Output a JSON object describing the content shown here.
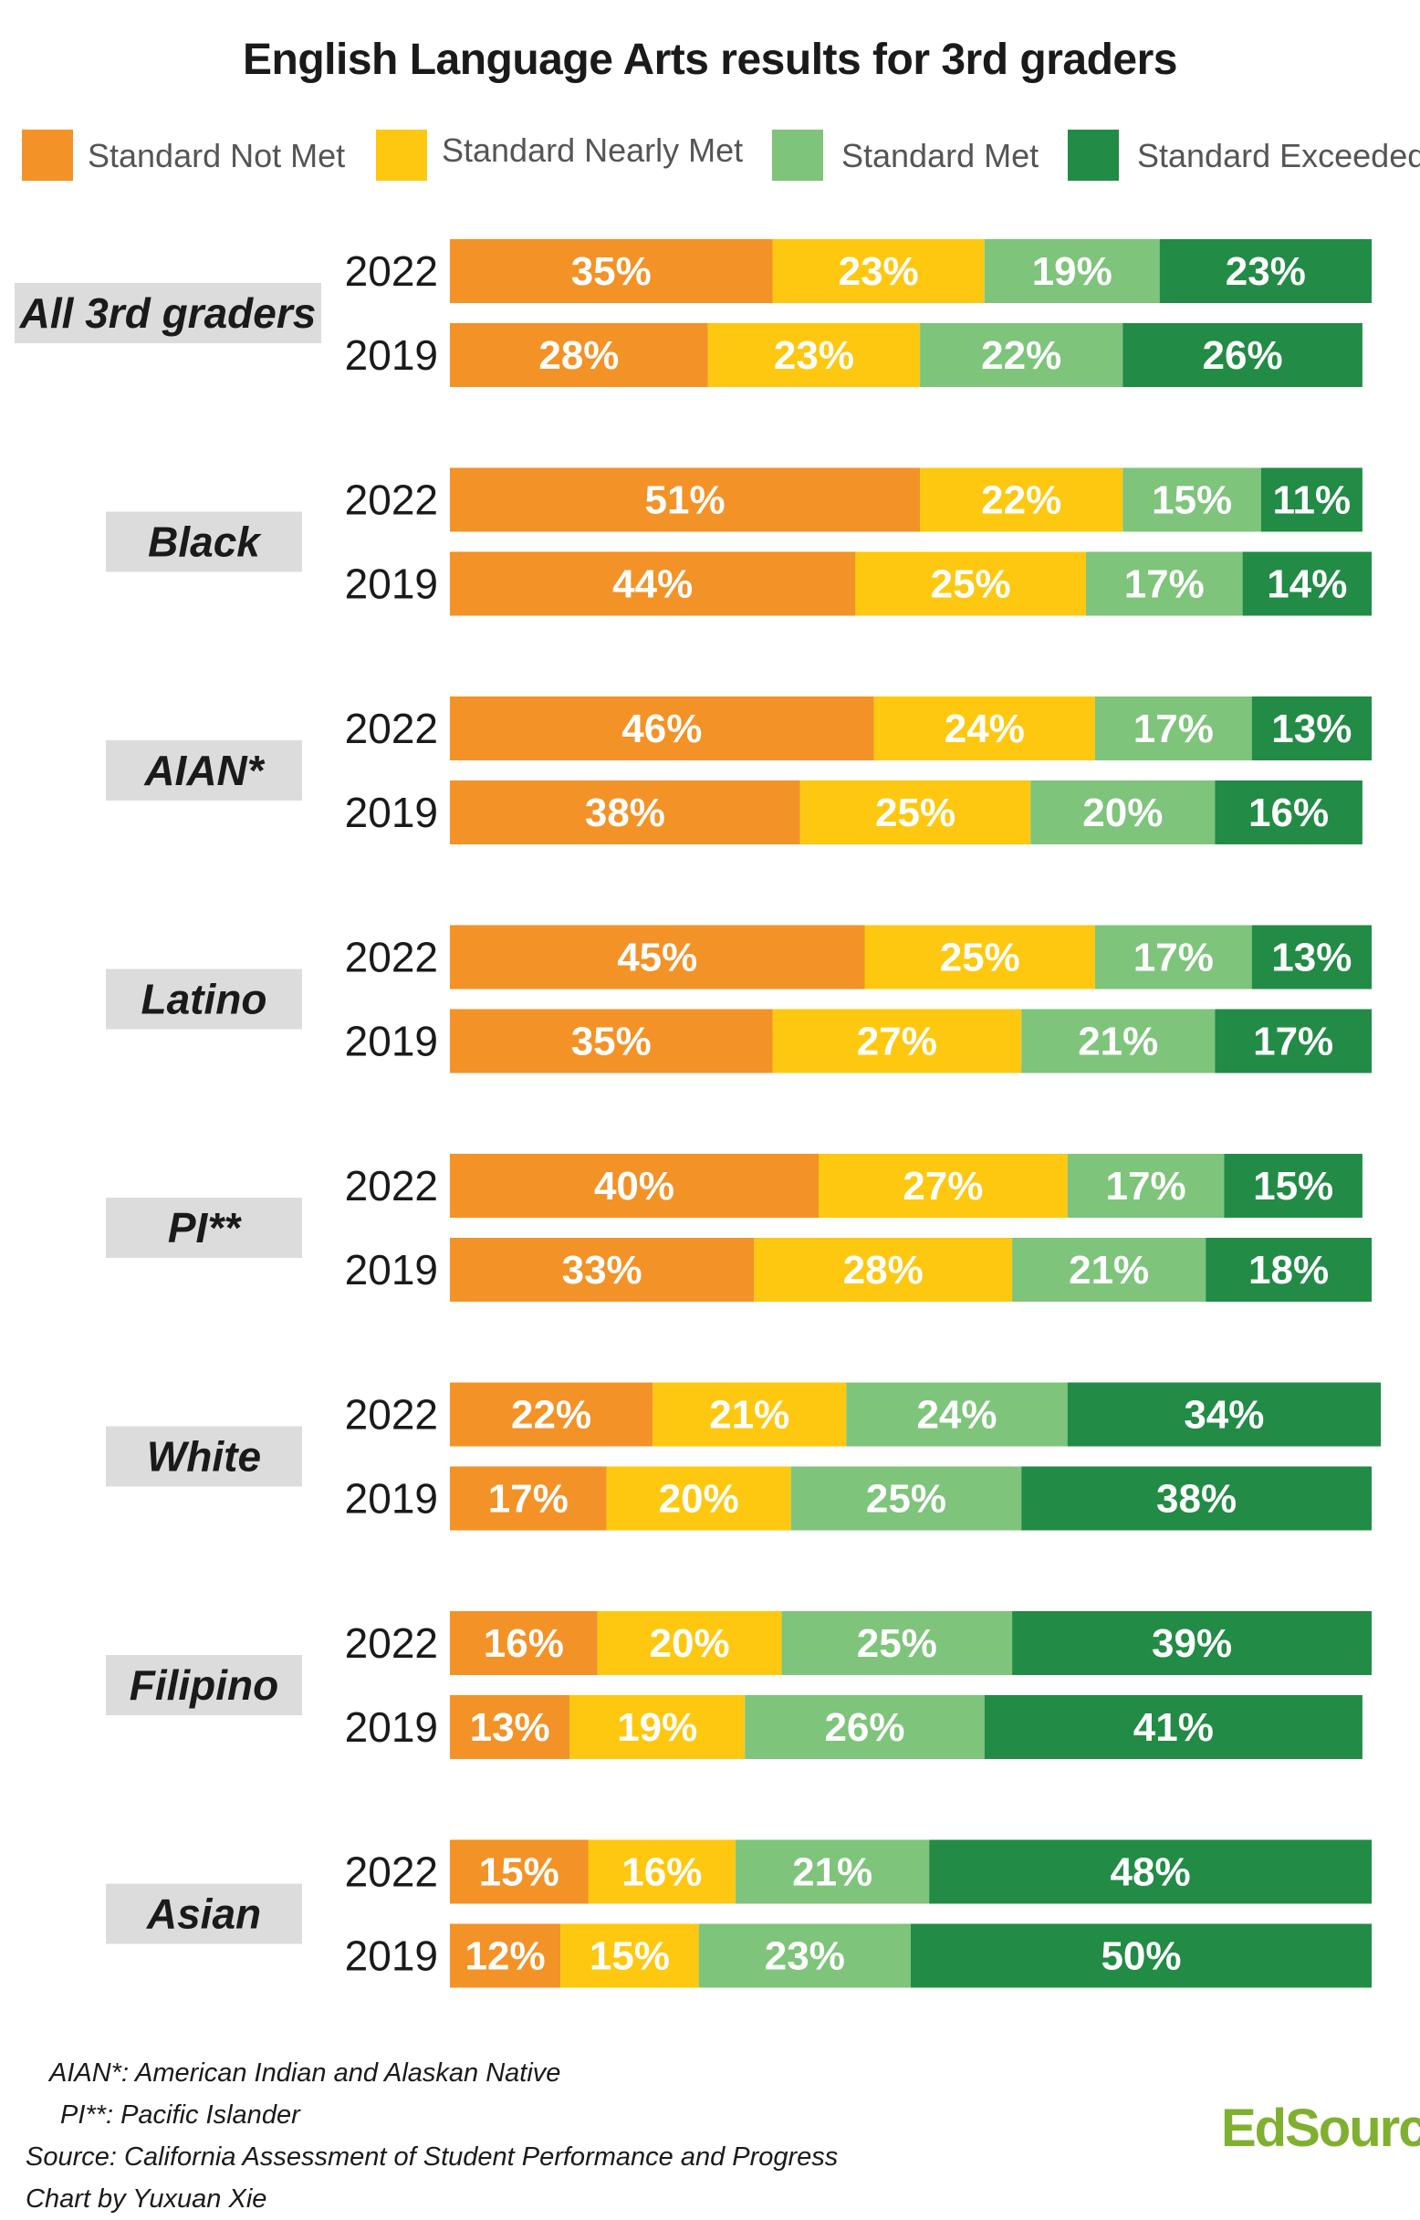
{
  "chart_data": {
    "type": "bar",
    "orientation": "horizontal",
    "stacked": true,
    "title": "English Language Arts results for 3rd graders",
    "series_names": [
      "Standard Not Met",
      "Standard Nearly Met",
      "Standard Met",
      "Standard Exceeded"
    ],
    "colors": [
      "#f39227",
      "#fdc80f",
      "#7ec47b",
      "#228b45"
    ],
    "value_format": "{v}%",
    "legend_position": "top",
    "groups": [
      {
        "name": "All 3rd graders",
        "rows": [
          {
            "year": "2022",
            "values": [
              35,
              23,
              19,
              23
            ]
          },
          {
            "year": "2019",
            "values": [
              28,
              23,
              22,
              26
            ]
          }
        ]
      },
      {
        "name": "Black",
        "rows": [
          {
            "year": "2022",
            "values": [
              51,
              22,
              15,
              11
            ]
          },
          {
            "year": "2019",
            "values": [
              44,
              25,
              17,
              14
            ]
          }
        ]
      },
      {
        "name": "AIAN*",
        "rows": [
          {
            "year": "2022",
            "values": [
              46,
              24,
              17,
              13
            ]
          },
          {
            "year": "2019",
            "values": [
              38,
              25,
              20,
              16
            ]
          }
        ]
      },
      {
        "name": "Latino",
        "rows": [
          {
            "year": "2022",
            "values": [
              45,
              25,
              17,
              13
            ]
          },
          {
            "year": "2019",
            "values": [
              35,
              27,
              21,
              17
            ]
          }
        ]
      },
      {
        "name": "PI**",
        "rows": [
          {
            "year": "2022",
            "values": [
              40,
              27,
              17,
              15
            ]
          },
          {
            "year": "2019",
            "values": [
              33,
              28,
              21,
              18
            ]
          }
        ]
      },
      {
        "name": "White",
        "rows": [
          {
            "year": "2022",
            "values": [
              22,
              21,
              24,
              34
            ]
          },
          {
            "year": "2019",
            "values": [
              17,
              20,
              25,
              38
            ]
          }
        ]
      },
      {
        "name": "Filipino",
        "rows": [
          {
            "year": "2022",
            "values": [
              16,
              20,
              25,
              39
            ]
          },
          {
            "year": "2019",
            "values": [
              13,
              19,
              26,
              41
            ]
          }
        ]
      },
      {
        "name": "Asian",
        "rows": [
          {
            "year": "2022",
            "values": [
              15,
              16,
              21,
              48
            ]
          },
          {
            "year": "2019",
            "values": [
              12,
              15,
              23,
              50
            ]
          }
        ]
      }
    ]
  },
  "notes": [
    "AIAN*: American Indian and Alaskan Native",
    "PI**: Pacific Islander",
    "Source: California Assessment of Student Performance and Progress",
    "Chart by Yuxuan Xie"
  ],
  "brand": "EdSource"
}
